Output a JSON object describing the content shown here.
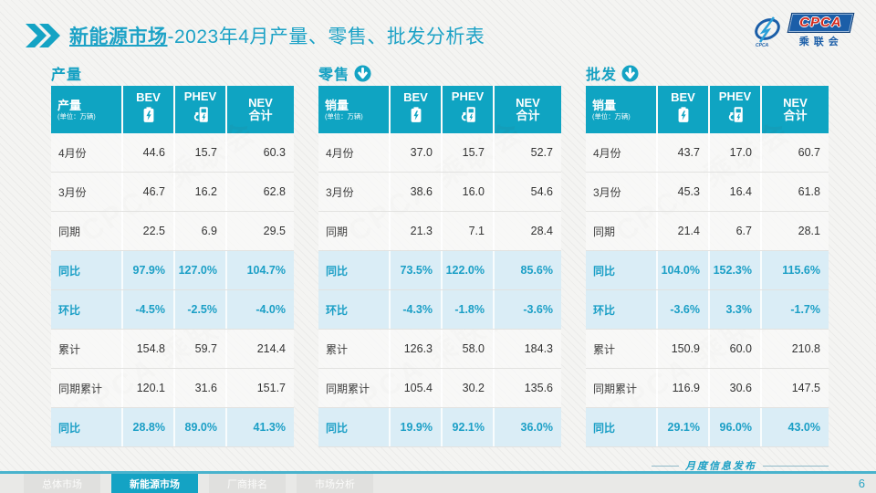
{
  "page": {
    "title_prefix": "新能源市场",
    "title_rest": "-2023年4月产量、零售、批发分析表",
    "page_number": "6",
    "publish_label": "月度信息发布"
  },
  "logo": {
    "acronym": "CPCA",
    "name": "乘联会"
  },
  "colors": {
    "teal": "#14a3c4",
    "header_bg": "#0fa4c2",
    "percent_row_bg": "#daedf6",
    "percent_text": "#1b9fc6"
  },
  "watermark": "CPCA 乘联会",
  "tables": [
    {
      "id": "production",
      "section_title": "产量",
      "arrow_icon": false,
      "label": "产量",
      "unit": "(单位：万辆)",
      "columns": [
        {
          "label": "BEV",
          "icon": "battery-icon"
        },
        {
          "label": "PHEV",
          "icon": "charger-icon"
        },
        {
          "label": "NEV",
          "label2": "合计"
        }
      ],
      "rows": [
        {
          "label": "4月份",
          "type": "normal",
          "values": [
            "44.6",
            "15.7",
            "60.3"
          ]
        },
        {
          "label": "3月份",
          "type": "normal",
          "values": [
            "46.7",
            "16.2",
            "62.8"
          ]
        },
        {
          "label": "同期",
          "type": "normal",
          "values": [
            "22.5",
            "6.9",
            "29.5"
          ]
        },
        {
          "label": "同比",
          "type": "percent",
          "values": [
            "97.9%",
            "127.0%",
            "104.7%"
          ]
        },
        {
          "label": "环比",
          "type": "percent",
          "values": [
            "-4.5%",
            "-2.5%",
            "-4.0%"
          ]
        },
        {
          "label": "累计",
          "type": "normal",
          "values": [
            "154.8",
            "59.7",
            "214.4"
          ]
        },
        {
          "label": "同期累计",
          "type": "normal",
          "values": [
            "120.1",
            "31.6",
            "151.7"
          ]
        },
        {
          "label": "同比",
          "type": "percent",
          "values": [
            "28.8%",
            "89.0%",
            "41.3%"
          ]
        }
      ]
    },
    {
      "id": "retail",
      "section_title": "零售",
      "arrow_icon": true,
      "label": "销量",
      "unit": "(单位：万辆)",
      "columns": [
        {
          "label": "BEV",
          "icon": "battery-icon"
        },
        {
          "label": "PHEV",
          "icon": "charger-icon"
        },
        {
          "label": "NEV",
          "label2": "合计"
        }
      ],
      "rows": [
        {
          "label": "4月份",
          "type": "normal",
          "values": [
            "37.0",
            "15.7",
            "52.7"
          ]
        },
        {
          "label": "3月份",
          "type": "normal",
          "values": [
            "38.6",
            "16.0",
            "54.6"
          ]
        },
        {
          "label": "同期",
          "type": "normal",
          "values": [
            "21.3",
            "7.1",
            "28.4"
          ]
        },
        {
          "label": "同比",
          "type": "percent",
          "values": [
            "73.5%",
            "122.0%",
            "85.6%"
          ]
        },
        {
          "label": "环比",
          "type": "percent",
          "values": [
            "-4.3%",
            "-1.8%",
            "-3.6%"
          ]
        },
        {
          "label": "累计",
          "type": "normal",
          "values": [
            "126.3",
            "58.0",
            "184.3"
          ]
        },
        {
          "label": "同期累计",
          "type": "normal",
          "values": [
            "105.4",
            "30.2",
            "135.6"
          ]
        },
        {
          "label": "同比",
          "type": "percent",
          "values": [
            "19.9%",
            "92.1%",
            "36.0%"
          ]
        }
      ]
    },
    {
      "id": "wholesale",
      "section_title": "批发",
      "arrow_icon": true,
      "label": "销量",
      "unit": "(单位：万辆)",
      "columns": [
        {
          "label": "BEV",
          "icon": "battery-icon"
        },
        {
          "label": "PHEV",
          "icon": "charger-icon"
        },
        {
          "label": "NEV",
          "label2": "合计"
        }
      ],
      "rows": [
        {
          "label": "4月份",
          "type": "normal",
          "values": [
            "43.7",
            "17.0",
            "60.7"
          ]
        },
        {
          "label": "3月份",
          "type": "normal",
          "values": [
            "45.3",
            "16.4",
            "61.8"
          ]
        },
        {
          "label": "同期",
          "type": "normal",
          "values": [
            "21.4",
            "6.7",
            "28.1"
          ]
        },
        {
          "label": "同比",
          "type": "percent",
          "values": [
            "104.0%",
            "152.3%",
            "115.6%"
          ]
        },
        {
          "label": "环比",
          "type": "percent",
          "values": [
            "-3.6%",
            "3.3%",
            "-1.7%"
          ]
        },
        {
          "label": "累计",
          "type": "normal",
          "values": [
            "150.9",
            "60.0",
            "210.8"
          ]
        },
        {
          "label": "同期累计",
          "type": "normal",
          "values": [
            "116.9",
            "30.6",
            "147.5"
          ]
        },
        {
          "label": "同比",
          "type": "percent",
          "values": [
            "29.1%",
            "96.0%",
            "43.0%"
          ]
        }
      ]
    }
  ],
  "footer": {
    "tabs": [
      {
        "label": "总体市场",
        "active": false
      },
      {
        "label": "新能源市场",
        "active": true
      },
      {
        "label": "厂商排名",
        "active": false
      },
      {
        "label": "市场分析",
        "active": false
      }
    ]
  }
}
